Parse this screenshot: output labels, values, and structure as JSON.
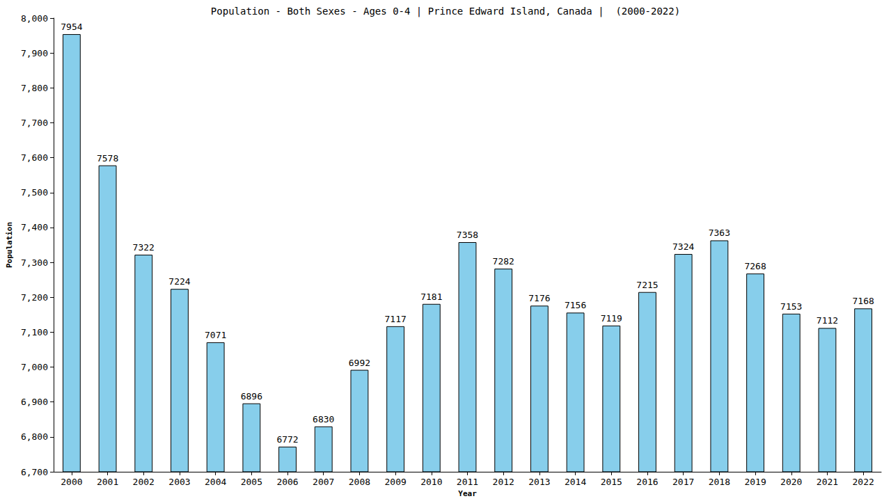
{
  "chart_data": {
    "type": "bar",
    "title": "Population - Both Sexes - Ages 0-4 | Prince Edward Island, Canada |  (2000-2022)",
    "x_label": "Year",
    "y_label": "Population",
    "categories": [
      "2000",
      "2001",
      "2002",
      "2003",
      "2004",
      "2005",
      "2006",
      "2007",
      "2008",
      "2009",
      "2010",
      "2011",
      "2012",
      "2013",
      "2014",
      "2015",
      "2016",
      "2017",
      "2018",
      "2019",
      "2020",
      "2021",
      "2022"
    ],
    "values": [
      7954,
      7578,
      7322,
      7224,
      7071,
      6896,
      6772,
      6830,
      6992,
      7117,
      7181,
      7358,
      7282,
      7176,
      7156,
      7119,
      7215,
      7324,
      7363,
      7268,
      7153,
      7112,
      7168
    ],
    "color": "#87ceeb",
    "ylim": [
      6700,
      8000
    ],
    "yticks": [
      6700,
      6800,
      6900,
      7000,
      7100,
      7200,
      7300,
      7400,
      7500,
      7600,
      7700,
      7800,
      7900,
      8000
    ],
    "grid": false,
    "data_labels": true
  }
}
